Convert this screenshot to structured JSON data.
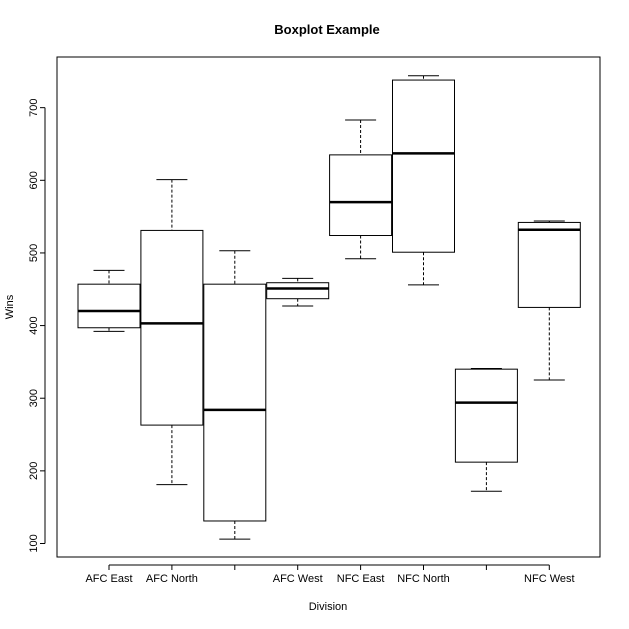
{
  "chart_data": {
    "type": "boxplot",
    "title": "Boxplot Example",
    "xlabel": "Division",
    "ylabel": "Wins",
    "ylim": [
      80,
      760
    ],
    "yticks": [
      100,
      200,
      300,
      400,
      500,
      600,
      700
    ],
    "grid": false,
    "categories": [
      "AFC East",
      "AFC North",
      "",
      "AFC West",
      "NFC East",
      "NFC North",
      "",
      "NFC West"
    ],
    "boxes": [
      {
        "min": 392,
        "q1": 397,
        "median": 420,
        "q3": 457,
        "max": 476
      },
      {
        "min": 181,
        "q1": 263,
        "median": 403,
        "q3": 531,
        "max": 601
      },
      {
        "min": 106,
        "q1": 131,
        "median": 284,
        "q3": 457,
        "max": 503
      },
      {
        "min": 427,
        "q1": 437,
        "median": 451,
        "q3": 459,
        "max": 465
      },
      {
        "min": 492,
        "q1": 524,
        "median": 570,
        "q3": 635,
        "max": 683
      },
      {
        "min": 456,
        "q1": 501,
        "median": 637,
        "q3": 738,
        "max": 744
      },
      {
        "min": 172,
        "q1": 212,
        "median": 294,
        "q3": 340,
        "max": 341
      },
      {
        "min": 325,
        "q1": 425,
        "median": 532,
        "q3": 542,
        "max": 544
      }
    ]
  }
}
